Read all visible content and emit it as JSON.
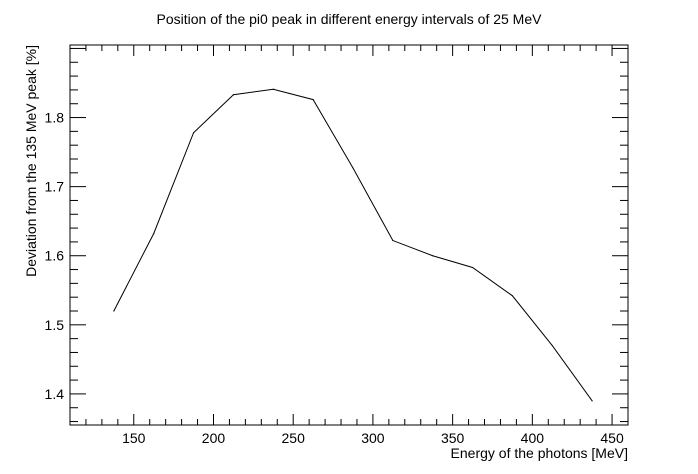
{
  "chart_data": {
    "type": "line",
    "title": "Position of the pi0 peak in different energy intervals of 25 MeV",
    "xlabel": "Energy of the photons [MeV]",
    "ylabel": "Deviation from the 135 MeV peak [%]",
    "xlim": [
      110,
      460
    ],
    "ylim": [
      1.355,
      1.445
    ],
    "ylim_display": [
      1.355,
      1.905
    ],
    "x_ticks": [
      150,
      200,
      250,
      300,
      350,
      400,
      450
    ],
    "x_tick_labels": [
      "150",
      "200",
      "250",
      "300",
      "350",
      "400",
      "450"
    ],
    "y_ticks": [
      1.4,
      1.5,
      1.6,
      1.7,
      1.8
    ],
    "y_tick_labels": [
      "1.4",
      "1.5",
      "1.6",
      "1.7",
      "1.8"
    ],
    "grid": false,
    "series": [
      {
        "x": [
          137.5,
          162.5,
          187.5,
          212.5,
          237.5,
          262.5,
          287.5,
          312.5,
          337.5,
          362.5,
          387.5,
          412.5,
          437.5
        ],
        "y": [
          1.52,
          1.632,
          1.778,
          1.833,
          1.841,
          1.826,
          1.727,
          1.622,
          1.6,
          1.583,
          1.542,
          1.47,
          1.39
        ]
      }
    ]
  }
}
